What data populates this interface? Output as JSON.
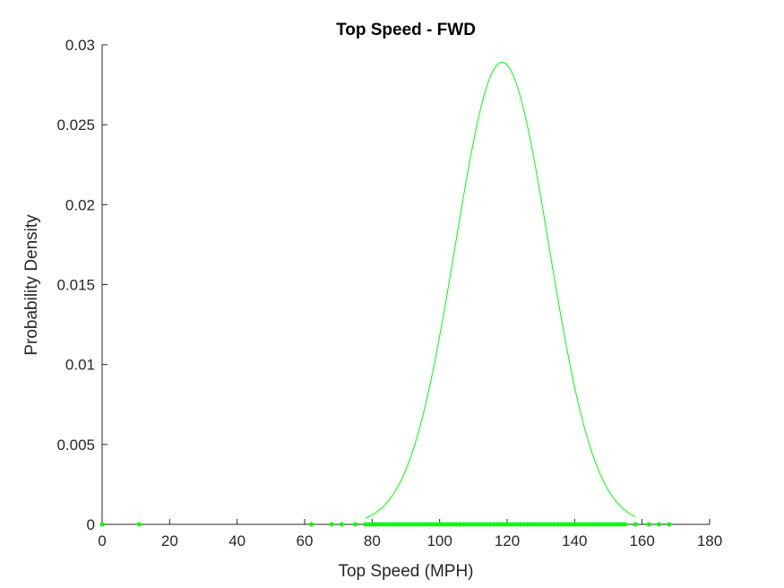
{
  "chart_data": {
    "type": "line",
    "title": "Top Speed - FWD",
    "xlabel": "Top Speed (MPH)",
    "ylabel": "Probability Density",
    "xlim": [
      0,
      180
    ],
    "ylim": [
      0,
      0.03
    ],
    "xticks": [
      0,
      20,
      40,
      60,
      80,
      100,
      120,
      140,
      160,
      180
    ],
    "xtick_labels": [
      "0",
      "20",
      "40",
      "60",
      "80",
      "100",
      "120",
      "140",
      "160",
      "180"
    ],
    "yticks": [
      0,
      0.005,
      0.01,
      0.015,
      0.02,
      0.025,
      0.03
    ],
    "ytick_labels": [
      "0",
      "0.005",
      "0.01",
      "0.015",
      "0.02",
      "0.025",
      "0.03"
    ],
    "grid": false,
    "legend": "none",
    "color": "#00ff00",
    "series": [
      {
        "kind": "normal-pdf-curve",
        "mean": 118.5,
        "std": 13.8,
        "x_range": [
          78,
          158
        ]
      },
      {
        "kind": "data-points",
        "x": [
          0,
          11,
          62,
          68,
          71,
          75,
          78,
          79,
          80,
          81,
          82,
          83,
          84,
          85,
          86,
          87,
          88,
          89,
          90,
          91,
          92,
          93,
          94,
          95,
          96,
          97,
          98,
          99,
          100,
          101,
          102,
          103,
          104,
          105,
          106,
          107,
          108,
          109,
          110,
          111,
          112,
          113,
          114,
          115,
          116,
          117,
          118,
          119,
          120,
          121,
          122,
          123,
          124,
          125,
          126,
          127,
          128,
          129,
          130,
          131,
          132,
          133,
          134,
          135,
          136,
          137,
          138,
          139,
          140,
          141,
          142,
          143,
          144,
          145,
          146,
          147,
          148,
          149,
          150,
          151,
          152,
          153,
          154,
          155,
          158,
          162,
          165,
          168
        ],
        "y": 0
      }
    ]
  }
}
